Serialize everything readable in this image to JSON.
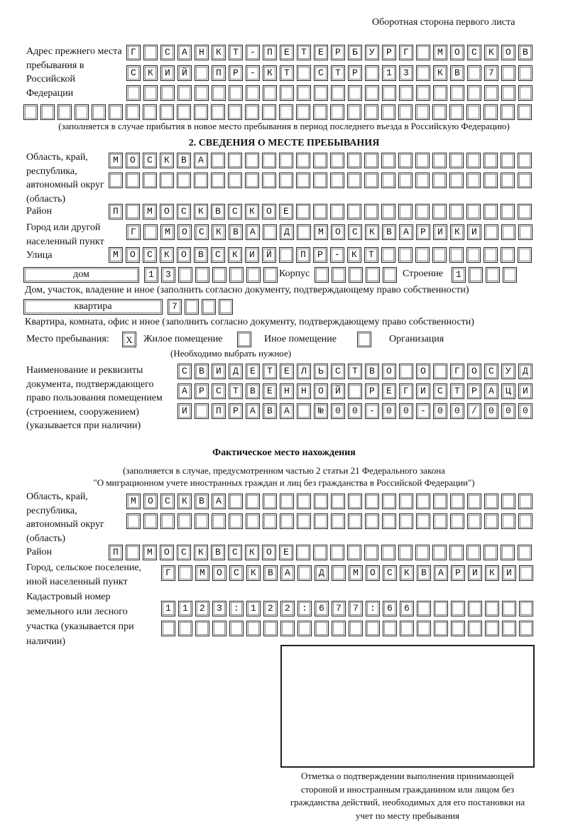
{
  "header": "Оборотная сторона первого листа",
  "prev_address": {
    "label": "Адрес прежнего места пребывания в Российской Федерации",
    "rows": [
      "Г САНКТ-ПЕТЕРБУРГ МОСКОВ",
      "СКИЙ ПР-КТ СТР 13 КВ 7  ",
      "                        ",
      "                              "
    ],
    "note": "(заполняется в случае прибытия в новое место пребывания в период последнего въезда в Российскую Федерацию)"
  },
  "section2": {
    "title": "2. СВЕДЕНИЯ О МЕСТЕ ПРЕБЫВАНИЯ",
    "region_label": "Область, край, республика, автономный округ (область)",
    "region_rows": [
      "МОСКВА                   ",
      "                         "
    ],
    "district_label": "Район",
    "district_row": "П МОСКВСКОЕ              ",
    "city_label": "Город или другой населенный пункт",
    "city_row": "Г МОСКВА Д МОСКВАРИКИ   ",
    "street_label": "Улица",
    "street_row": "МОСКОВСКИЙ ПР-КТ         ",
    "house_type": "дом",
    "house_row": "13      ",
    "korpus_label": "Корпус",
    "korpus_row": "     ",
    "building_label": "Строение",
    "building_row": "1   ",
    "house_note": "Дом, участок, владение и иное (заполнить согласно документу, подтверждающему право собственности)",
    "flat_type": "квартира",
    "flat_row": "7   ",
    "flat_note": "Квартира, комната, офис и иное (заполнить согласно документу, подтверждающему право собственности)",
    "stay_label": "Место пребывания:",
    "options": [
      {
        "label": "Жилое помещение",
        "mark": "X"
      },
      {
        "label": "Иное помещение",
        "mark": ""
      },
      {
        "label": "Организация",
        "mark": ""
      }
    ],
    "choose_note": "(Необходимо выбрать нужное)",
    "doc_label": "Наименование и реквизиты документа, подтверждающего право пользования помещением (строением, сооружением) (указывается при наличии)",
    "doc_rows": [
      "СВИДЕТЕЛЬСТВО О ГОСУД",
      "АРСТВЕННОЙ РЕГИСТРАЦИ",
      "И ПРАВА №00-00-00/000"
    ]
  },
  "actual": {
    "title": "Фактическое место нахождения",
    "note1": "(заполняется в случае, предусмотренном частью 2 статьи 21 Федерального закона",
    "note2": "\"О миграционном учете иностранных граждан и лиц без гражданства в Российской Федерации\")",
    "region_label": "Область, край, республика, автономный округ (область)",
    "region_rows": [
      "МОСКВА                  ",
      "                        "
    ],
    "district_label": "Район",
    "district_row": "П МОСКВСКОЕ              ",
    "city_label": "Город, сельское поселение, иной населенный пункт",
    "city_row": "Г МОСКВА Д МОСКВАРИКИ ",
    "cadastre_label": "Кадастровый номер земельного или лесного участка (указывается при наличии)",
    "cadastre_rows": [
      "1123:122:677:66       ",
      "                      "
    ]
  },
  "stamp_caption": "Отметка о подтверждении выполнения принимающей стороной и иностранным гражданином или лицом без гражданства действий, необходимых для его постановки на учет по месту пребывания"
}
